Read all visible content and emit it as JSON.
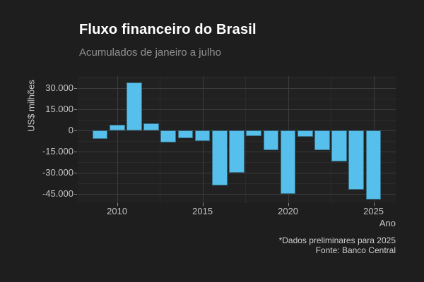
{
  "header": {
    "title": "Fluxo financeiro do Brasil",
    "subtitle": "Acumulados de janeiro a julho"
  },
  "axes": {
    "y_title": "US$ milhões",
    "x_title": "Ano"
  },
  "caption": {
    "line1": "*Dados preliminares para 2025",
    "line2": "Fonte: Banco Central"
  },
  "colors": {
    "background": "#1e1e1e",
    "panel_background": "#212121",
    "bar_fill": "#56bfeb",
    "grid_major": "#3c3c3c",
    "grid_minor": "#2b2b2b",
    "title_text": "#ffffff",
    "subtitle_text": "#8f8f8f",
    "axis_text": "#c4c4c4"
  },
  "chart_data": {
    "type": "bar",
    "title": "Fluxo financeiro do Brasil",
    "subtitle": "Acumulados de janeiro a julho",
    "xlabel": "Ano",
    "ylabel": "US$ milhões",
    "categories": [
      2009,
      2010,
      2011,
      2012,
      2013,
      2014,
      2015,
      2016,
      2017,
      2018,
      2019,
      2020,
      2021,
      2022,
      2023,
      2024,
      2025
    ],
    "values": [
      -6000,
      4200,
      33900,
      4800,
      -8600,
      -5500,
      -7500,
      -38900,
      -30000,
      -3900,
      -13900,
      -45000,
      -4500,
      -14000,
      -22100,
      -42100,
      -48900
    ],
    "unit": "US$ milhões",
    "xlim": [
      2007.7,
      2026.3
    ],
    "ylim": [
      -51500,
      38500
    ],
    "bar_width_years": 0.9,
    "legend": "none",
    "grid": "major-and-minor",
    "y_ticks": [
      {
        "value": 30000,
        "label": "30.000"
      },
      {
        "value": 15000,
        "label": "15.000"
      },
      {
        "value": 0,
        "label": "0"
      },
      {
        "value": -15000,
        "label": "-15.000"
      },
      {
        "value": -30000,
        "label": "-30.000"
      },
      {
        "value": -45000,
        "label": "-45.000"
      }
    ],
    "y_minor_ticks": [
      37500,
      22500,
      7500,
      -7500,
      -22500,
      -37500
    ],
    "x_ticks": [
      {
        "value": 2010,
        "label": "2010"
      },
      {
        "value": 2015,
        "label": "2015"
      },
      {
        "value": 2020,
        "label": "2020"
      },
      {
        "value": 2025,
        "label": "2025"
      }
    ],
    "x_minor_ticks": [
      2012.5,
      2017.5,
      2022.5
    ]
  }
}
